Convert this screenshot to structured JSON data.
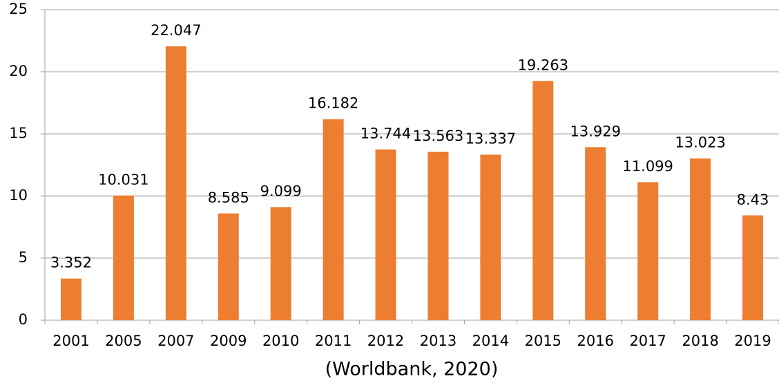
{
  "chart_data": {
    "type": "bar",
    "xlabel": "(Worldbank, 2020)",
    "categories": [
      "2001",
      "2005",
      "2007",
      "2009",
      "2010",
      "2011",
      "2012",
      "2013",
      "2014",
      "2015",
      "2016",
      "2017",
      "2018",
      "2019"
    ],
    "values": [
      3.352,
      10.031,
      22.047,
      8.585,
      9.099,
      16.182,
      13.744,
      13.563,
      13.337,
      19.263,
      13.929,
      11.099,
      13.023,
      8.43
    ],
    "color": "#ed7d31",
    "ylim": [
      0,
      25
    ],
    "yticks": [
      0,
      5,
      10,
      15,
      20,
      25
    ],
    "grid": true
  }
}
